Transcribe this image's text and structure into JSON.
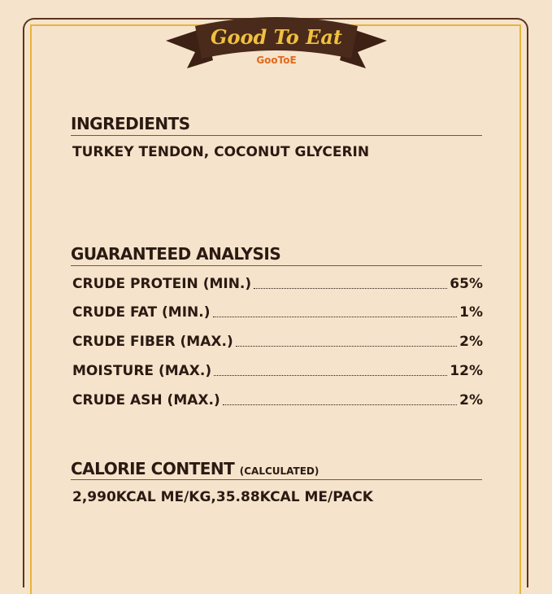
{
  "banner": {
    "title": "Good To Eat",
    "brand": "GooToE"
  },
  "ingredients": {
    "heading": "INGREDIENTS",
    "text": "TURKEY TENDON, COCONUT GLYCERIN"
  },
  "analysis": {
    "heading": "GUARANTEED ANALYSIS",
    "rows": [
      {
        "label": "CRUDE PROTEIN (MIN.)",
        "value": "65%"
      },
      {
        "label": "CRUDE FAT (MIN.)",
        "value": "1%"
      },
      {
        "label": "CRUDE FIBER (MAX.)",
        "value": "2%"
      },
      {
        "label": "MOISTURE (MAX.)",
        "value": "12%"
      },
      {
        "label": "CRUDE ASH (MAX.)",
        "value": "2%"
      }
    ]
  },
  "calorie": {
    "heading": "CALORIE CONTENT",
    "note": "(CALCULATED)",
    "text": "2,990KCAL ME/KG,35.88KCAL ME/PACK"
  },
  "colors": {
    "background": "#f6e3cb",
    "brown": "#4a2a1a",
    "gold": "#e8b43c",
    "brand_orange": "#e06a1c"
  }
}
